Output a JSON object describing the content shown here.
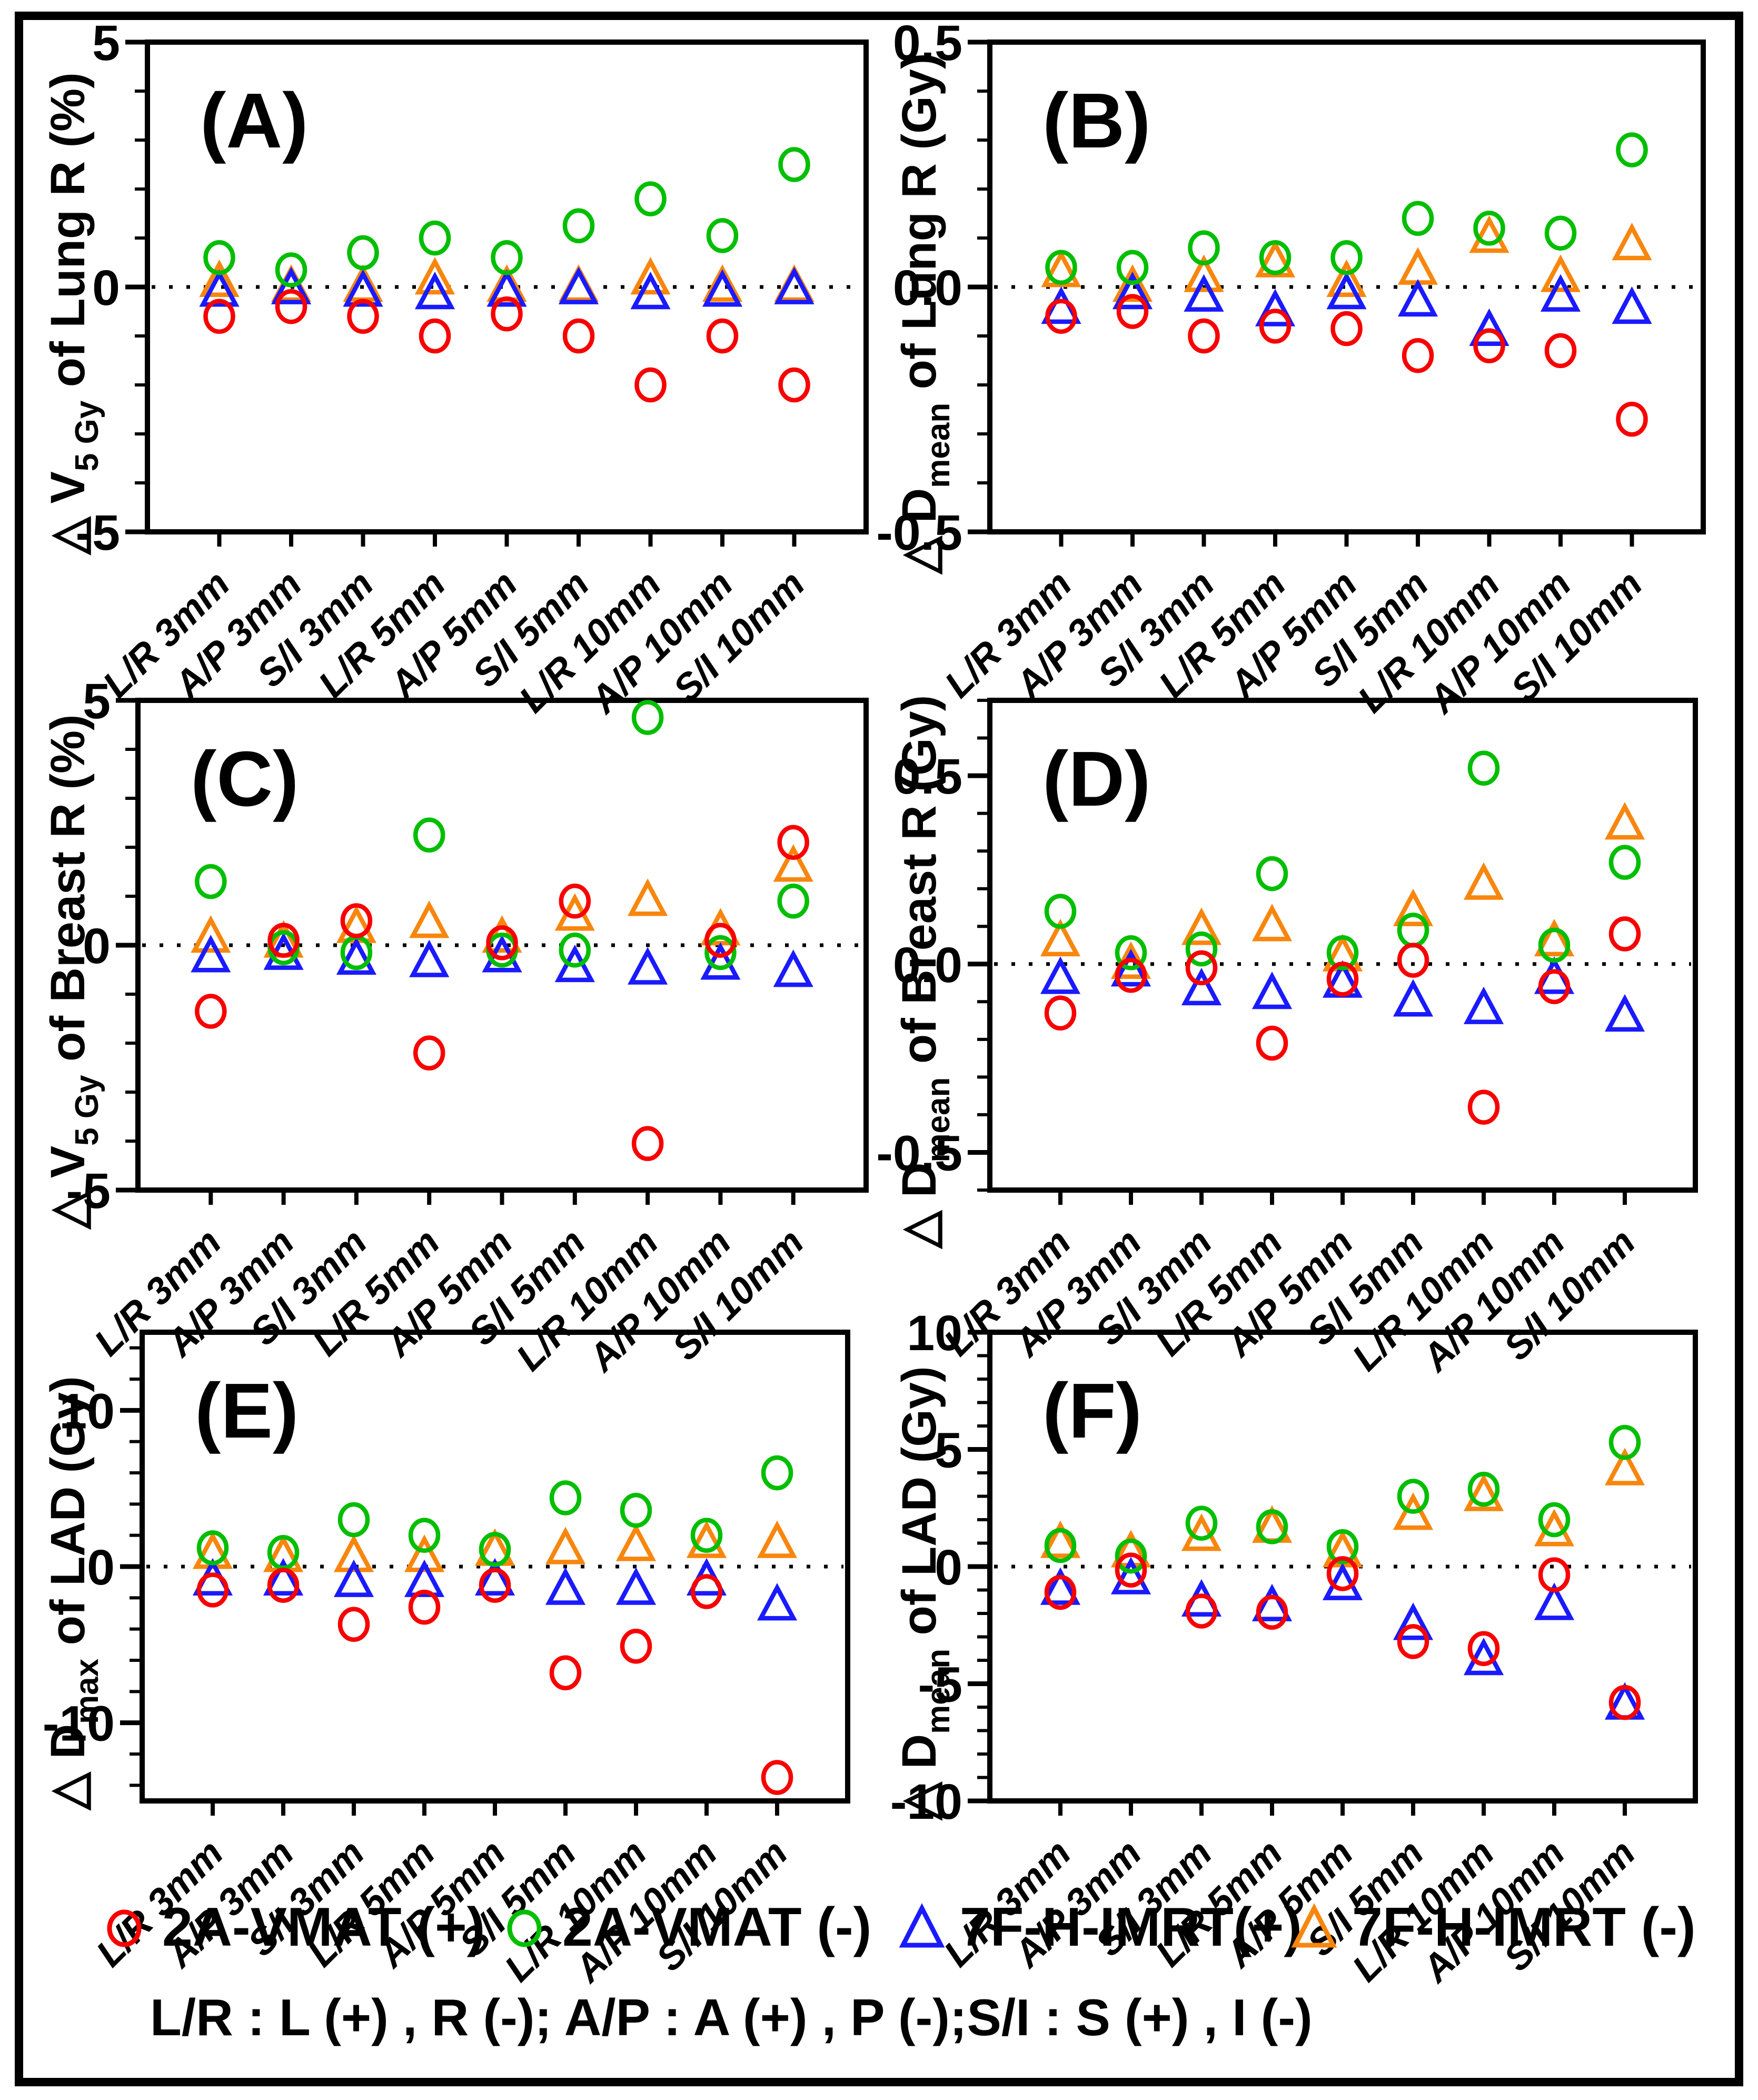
{
  "figure": {
    "note": "L/R : L (+) , R (-); A/P : A (+) , P (-);S/I : S (+) , I (-)"
  },
  "colors": {
    "red": "#F80000",
    "green": "#00BE00",
    "blue": "#1A1AFF",
    "orange": "#F8860D",
    "axis": "#000000"
  },
  "legend": {
    "position": "bottom",
    "items": [
      {
        "label": "2A-VMAT (+)",
        "marker": "circle",
        "color": "#F80000"
      },
      {
        "label": "2A-VMAT (-)",
        "marker": "circle",
        "color": "#00BE00"
      },
      {
        "label": "7F-H-IMRT(+)",
        "marker": "triangle",
        "color": "#1A1AFF"
      },
      {
        "label": "7F-H-IMRT (-)",
        "marker": "triangle",
        "color": "#F8860D"
      }
    ]
  },
  "chart_data": [
    {
      "type": "scatter",
      "panel_label": "(A)",
      "ylabel": "△V5 Gy of Lung R (%)",
      "ylabel_parts": {
        "pre": "△ ",
        "var": "V",
        "sub": "5 Gy",
        "rest": " of Lung R (%)"
      },
      "ylim": [
        -5,
        5
      ],
      "yticks": [
        {
          "v": 5,
          "label": "5"
        },
        {
          "v": 0,
          "label": "0"
        },
        {
          "v": -5,
          "label": "-5"
        }
      ],
      "minor_step": 1,
      "zero_line": true,
      "grid": false,
      "categories": [
        "L/R 3mm",
        "A/P 3mm",
        "S/I 3mm",
        "L/R 5mm",
        "A/P 5mm",
        "S/I 5mm",
        "L/R 10mm",
        "A/P 10mm",
        "S/I 10mm"
      ],
      "series": [
        {
          "name": "2A-VMAT (+)",
          "marker": "circle",
          "color": "#F80000",
          "values": [
            -0.6,
            -0.4,
            -0.6,
            -1.0,
            -0.55,
            -1.0,
            -2.0,
            -1.0,
            -2.0
          ]
        },
        {
          "name": "2A-VMAT (-)",
          "marker": "circle",
          "color": "#00BE00",
          "values": [
            0.6,
            0.35,
            0.7,
            1.0,
            0.6,
            1.25,
            1.8,
            1.05,
            2.5
          ]
        },
        {
          "name": "7F-H-IMRT(+)",
          "marker": "triangle",
          "color": "#1A1AFF",
          "values": [
            -0.1,
            -0.05,
            -0.1,
            -0.15,
            -0.1,
            -0.05,
            -0.15,
            -0.1,
            -0.05
          ]
        },
        {
          "name": "7F-H-IMRT (-)",
          "marker": "triangle",
          "color": "#F8860D",
          "values": [
            0.1,
            0.0,
            0.0,
            0.15,
            0.0,
            0.0,
            0.15,
            0.0,
            0.0
          ]
        }
      ]
    },
    {
      "type": "scatter",
      "panel_label": "(B)",
      "ylabel": "△Dmean of Lung R (Gy)",
      "ylabel_parts": {
        "pre": "△ ",
        "var": "D",
        "sub": "mean",
        "rest": " of Lung R (Gy)"
      },
      "ylim": [
        -0.5,
        0.5
      ],
      "yticks": [
        {
          "v": 0.5,
          "label": "0.5"
        },
        {
          "v": 0,
          "label": "0.0"
        },
        {
          "v": -0.5,
          "label": "-0.5"
        }
      ],
      "minor_step": 0.1,
      "zero_line": true,
      "grid": false,
      "categories": [
        "L/R 3mm",
        "A/P 3mm",
        "S/I 3mm",
        "L/R 5mm",
        "A/P 5mm",
        "S/I 5mm",
        "L/R 10mm",
        "A/P 10mm",
        "S/I 10mm"
      ],
      "series": [
        {
          "name": "2A-VMAT (+)",
          "marker": "circle",
          "color": "#F80000",
          "values": [
            -0.06,
            -0.05,
            -0.1,
            -0.08,
            -0.085,
            -0.14,
            -0.12,
            -0.13,
            -0.27
          ]
        },
        {
          "name": "2A-VMAT (-)",
          "marker": "circle",
          "color": "#00BE00",
          "values": [
            0.04,
            0.04,
            0.08,
            0.06,
            0.06,
            0.14,
            0.12,
            0.11,
            0.28
          ]
        },
        {
          "name": "7F-H-IMRT(+)",
          "marker": "triangle",
          "color": "#1A1AFF",
          "values": [
            -0.045,
            -0.015,
            -0.02,
            -0.05,
            -0.015,
            -0.03,
            -0.09,
            -0.02,
            -0.045
          ]
        },
        {
          "name": "7F-H-IMRT (-)",
          "marker": "triangle",
          "color": "#F8860D",
          "values": [
            0.03,
            0.0,
            0.02,
            0.05,
            0.01,
            0.035,
            0.1,
            0.02,
            0.085
          ]
        }
      ]
    },
    {
      "type": "scatter",
      "panel_label": "(C)",
      "ylabel": "△V5 Gy of Breast R (%)",
      "ylabel_parts": {
        "pre": "△ ",
        "var": "V",
        "sub": "5 Gy",
        "rest": " of Breast R (%)"
      },
      "ylim": [
        -5,
        5
      ],
      "yticks": [
        {
          "v": 5,
          "label": "5"
        },
        {
          "v": 0,
          "label": "0"
        },
        {
          "v": -5,
          "label": "-5"
        }
      ],
      "minor_step": 1,
      "zero_line": true,
      "grid": false,
      "categories": [
        "L/R 3mm",
        "A/P 3mm",
        "S/I 3mm",
        "L/R 5mm",
        "A/P 5mm",
        "S/I 5mm",
        "L/R 10mm",
        "A/P 10mm",
        "S/I 10mm"
      ],
      "series": [
        {
          "name": "2A-VMAT (+)",
          "marker": "circle",
          "color": "#F80000",
          "values": [
            -1.35,
            0.1,
            0.5,
            -2.2,
            0.05,
            0.9,
            -4.05,
            0.1,
            2.1
          ]
        },
        {
          "name": "2A-VMAT (-)",
          "marker": "circle",
          "color": "#00BE00",
          "values": [
            1.3,
            -0.05,
            -0.15,
            2.25,
            -0.1,
            -0.1,
            4.65,
            -0.15,
            0.9
          ]
        },
        {
          "name": "7F-H-IMRT(+)",
          "marker": "triangle",
          "color": "#1A1AFF",
          "values": [
            -0.25,
            -0.2,
            -0.3,
            -0.35,
            -0.25,
            -0.45,
            -0.5,
            -0.4,
            -0.55
          ]
        },
        {
          "name": "7F-H-IMRT (-)",
          "marker": "triangle",
          "color": "#F8860D",
          "values": [
            0.15,
            0.05,
            0.35,
            0.45,
            0.15,
            0.6,
            0.9,
            0.3,
            1.6
          ]
        }
      ]
    },
    {
      "type": "scatter",
      "panel_label": "(D)",
      "ylabel": "△Dmean of Breast R (Gy)",
      "ylabel_parts": {
        "pre": "△ ",
        "var": "D",
        "sub": "mean",
        "rest": " of Breast R (Gy)"
      },
      "ylim": [
        -0.6,
        0.7
      ],
      "yticks": [
        {
          "v": 0.5,
          "label": "0.5"
        },
        {
          "v": 0,
          "label": "0.0"
        },
        {
          "v": -0.5,
          "label": "-0.5"
        }
      ],
      "minor_step": 0.1,
      "zero_line": true,
      "grid": false,
      "categories": [
        "L/R 3mm",
        "A/P 3mm",
        "S/I 3mm",
        "L/R 5mm",
        "A/P 5mm",
        "S/I 5mm",
        "L/R 10mm",
        "A/P 10mm",
        "S/I 10mm"
      ],
      "series": [
        {
          "name": "2A-VMAT (+)",
          "marker": "circle",
          "color": "#F80000",
          "values": [
            -0.13,
            -0.03,
            -0.01,
            -0.21,
            -0.04,
            0.01,
            -0.38,
            -0.06,
            0.08
          ]
        },
        {
          "name": "2A-VMAT (-)",
          "marker": "circle",
          "color": "#00BE00",
          "values": [
            0.14,
            0.03,
            0.04,
            0.24,
            0.03,
            0.09,
            0.52,
            0.05,
            0.27
          ]
        },
        {
          "name": "7F-H-IMRT(+)",
          "marker": "triangle",
          "color": "#1A1AFF",
          "values": [
            -0.04,
            -0.02,
            -0.07,
            -0.08,
            -0.05,
            -0.1,
            -0.12,
            -0.04,
            -0.14
          ]
        },
        {
          "name": "7F-H-IMRT (-)",
          "marker": "triangle",
          "color": "#F8860D",
          "values": [
            0.06,
            0.0,
            0.09,
            0.1,
            0.02,
            0.14,
            0.21,
            0.06,
            0.37
          ]
        }
      ]
    },
    {
      "type": "scatter",
      "panel_label": "(E)",
      "ylabel": "△Dmax of LAD (Gy)",
      "ylabel_parts": {
        "pre": "△ ",
        "var": "D",
        "sub": "max",
        "rest": " of LAD (Gy)"
      },
      "ylim": [
        -15,
        15
      ],
      "yticks": [
        {
          "v": 10,
          "label": "10"
        },
        {
          "v": 0,
          "label": "0"
        },
        {
          "v": -10,
          "label": "-10"
        }
      ],
      "minor_step": 2,
      "zero_line": true,
      "grid": false,
      "categories": [
        "L/R 3mm",
        "A/P 3mm",
        "S/I 3mm",
        "L/R 5mm",
        "A/P 5mm",
        "S/I 5mm",
        "L/R 10mm",
        "A/P 10mm",
        "S/I 10mm"
      ],
      "series": [
        {
          "name": "2A-VMAT (+)",
          "marker": "circle",
          "color": "#F80000",
          "values": [
            -1.5,
            -1.2,
            -3.7,
            -2.6,
            -1.2,
            -6.8,
            -5.1,
            -1.6,
            -13.5
          ]
        },
        {
          "name": "2A-VMAT (-)",
          "marker": "circle",
          "color": "#00BE00",
          "values": [
            1.2,
            0.9,
            3.0,
            2.0,
            1.1,
            4.4,
            3.6,
            2.0,
            6.0
          ]
        },
        {
          "name": "7F-H-IMRT(+)",
          "marker": "triangle",
          "color": "#1A1AFF",
          "values": [
            -0.9,
            -0.9,
            -1.0,
            -1.0,
            -0.9,
            -1.5,
            -1.5,
            -0.9,
            -2.5
          ]
        },
        {
          "name": "7F-H-IMRT (-)",
          "marker": "triangle",
          "color": "#F8860D",
          "values": [
            0.8,
            0.6,
            0.6,
            0.6,
            1.0,
            1.1,
            1.3,
            1.5,
            1.5
          ]
        }
      ]
    },
    {
      "type": "scatter",
      "panel_label": "(F)",
      "ylabel": "△Dmean of LAD (Gy)",
      "ylabel_parts": {
        "pre": "△ ",
        "var": "D",
        "sub": "mean",
        "rest": " of LAD (Gy)"
      },
      "ylim": [
        -10,
        10
      ],
      "yticks": [
        {
          "v": 10,
          "label": "10"
        },
        {
          "v": 5,
          "label": "5"
        },
        {
          "v": 0,
          "label": "0"
        },
        {
          "v": -5,
          "label": "-5"
        },
        {
          "v": -10,
          "label": "-10"
        }
      ],
      "minor_step": 1,
      "zero_line": true,
      "grid": false,
      "categories": [
        "L/R 3mm",
        "A/P 3mm",
        "S/I 3mm",
        "L/R 5mm",
        "A/P 5mm",
        "S/I 5mm",
        "L/R 10mm",
        "A/P 10mm",
        "S/I 10mm"
      ],
      "series": [
        {
          "name": "2A-VMAT (+)",
          "marker": "circle",
          "color": "#F80000",
          "values": [
            -1.1,
            -0.15,
            -1.9,
            -1.95,
            -0.3,
            -3.2,
            -3.5,
            -0.35,
            -5.8
          ]
        },
        {
          "name": "2A-VMAT (-)",
          "marker": "circle",
          "color": "#00BE00",
          "values": [
            0.9,
            0.45,
            1.85,
            1.7,
            0.85,
            3.0,
            3.3,
            2.0,
            5.3
          ]
        },
        {
          "name": "7F-H-IMRT(+)",
          "marker": "triangle",
          "color": "#1A1AFF",
          "values": [
            -1.0,
            -0.55,
            -1.5,
            -1.7,
            -0.8,
            -2.5,
            -4.0,
            -1.65,
            -5.9
          ]
        },
        {
          "name": "7F-H-IMRT (-)",
          "marker": "triangle",
          "color": "#F8860D",
          "values": [
            1.0,
            0.6,
            1.3,
            1.65,
            0.6,
            2.2,
            3.0,
            1.5,
            4.1
          ]
        }
      ]
    }
  ]
}
